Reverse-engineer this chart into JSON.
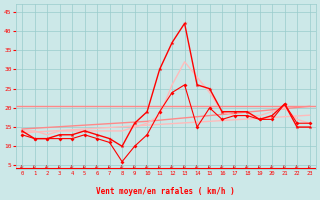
{
  "bg_color": "#cce8e8",
  "grid_color": "#99cccc",
  "x_ticks": [
    0,
    1,
    2,
    3,
    4,
    5,
    6,
    7,
    8,
    9,
    10,
    11,
    12,
    13,
    14,
    15,
    16,
    17,
    18,
    19,
    20,
    21,
    22,
    23
  ],
  "xlabel": "Vent moyen/en rafales ( km/h )",
  "ylim": [
    4,
    47
  ],
  "yticks": [
    5,
    10,
    15,
    20,
    25,
    30,
    35,
    40,
    45
  ],
  "line_red": "#ff0000",
  "line_pink": "#ff8888",
  "line_lightpink": "#ffbbbb",
  "series_wind_mean": [
    13,
    12,
    12,
    12,
    12,
    13,
    12,
    11,
    6,
    10,
    13,
    19,
    24,
    26,
    15,
    20,
    17,
    18,
    18,
    17,
    17,
    21,
    16,
    16
  ],
  "series_wind_gust": [
    14,
    12,
    12,
    13,
    13,
    14,
    13,
    12,
    10,
    16,
    19,
    30,
    37,
    42,
    26,
    25,
    19,
    19,
    19,
    17,
    18,
    21,
    15,
    15
  ],
  "series_regression_low": [
    13.5,
    13.7,
    13.9,
    14.1,
    14.3,
    14.5,
    14.7,
    14.9,
    15.1,
    15.3,
    15.5,
    15.7,
    15.9,
    16.1,
    16.3,
    16.5,
    16.7,
    16.9,
    17.1,
    17.3,
    17.5,
    17.7,
    17.9,
    18.1
  ],
  "series_regression_high": [
    14.5,
    14.7,
    14.9,
    15.1,
    15.3,
    15.5,
    15.7,
    15.9,
    16.1,
    16.3,
    16.5,
    16.8,
    17.1,
    17.4,
    17.7,
    18.0,
    18.3,
    18.6,
    18.9,
    19.2,
    19.5,
    19.8,
    20.1,
    20.4
  ],
  "series_gust_smooth": [
    14,
    14,
    13,
    14,
    14,
    14,
    14,
    14,
    14,
    15,
    16,
    18,
    26,
    32,
    28,
    24,
    19,
    18,
    18,
    18,
    19,
    20,
    17,
    16
  ],
  "flat_line_y": 20.5,
  "arrow_color": "#cc2222"
}
